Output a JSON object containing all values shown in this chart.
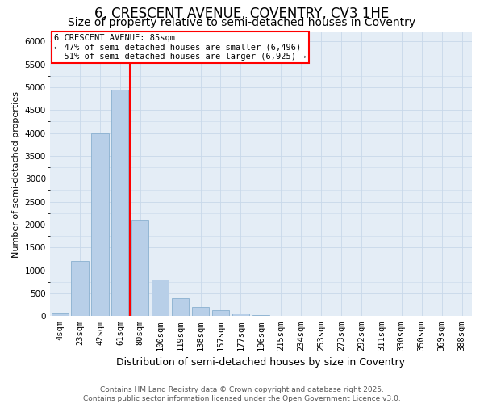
{
  "title": "6, CRESCENT AVENUE, COVENTRY, CV3 1HE",
  "subtitle": "Size of property relative to semi-detached houses in Coventry",
  "xlabel": "Distribution of semi-detached houses by size in Coventry",
  "ylabel": "Number of semi-detached properties",
  "categories": [
    "4sqm",
    "23sqm",
    "42sqm",
    "61sqm",
    "80sqm",
    "100sqm",
    "119sqm",
    "138sqm",
    "157sqm",
    "177sqm",
    "196sqm",
    "215sqm",
    "234sqm",
    "253sqm",
    "273sqm",
    "292sqm",
    "311sqm",
    "330sqm",
    "350sqm",
    "369sqm",
    "388sqm"
  ],
  "values": [
    70,
    1200,
    4000,
    4950,
    2100,
    800,
    400,
    200,
    130,
    55,
    20,
    8,
    3,
    1,
    0,
    0,
    0,
    0,
    0,
    0,
    0
  ],
  "bar_color": "#b8cfe8",
  "bar_edge_color": "#8ab0d0",
  "vline_index": 3.5,
  "property_line_label": "6 CRESCENT AVENUE: 85sqm",
  "smaller_pct": "47%",
  "smaller_count": "6,496",
  "larger_pct": "51%",
  "larger_count": "6,925",
  "vline_color": "red",
  "annotation_box_color": "red",
  "ylim": [
    0,
    6200
  ],
  "yticks": [
    0,
    500,
    1000,
    1500,
    2000,
    2500,
    3000,
    3500,
    4000,
    4500,
    5000,
    5500,
    6000
  ],
  "grid_color": "#c8d8ea",
  "background_color": "#e4edf6",
  "footer": "Contains HM Land Registry data © Crown copyright and database right 2025.\nContains public sector information licensed under the Open Government Licence v3.0.",
  "title_fontsize": 12,
  "subtitle_fontsize": 10,
  "xlabel_fontsize": 9,
  "ylabel_fontsize": 8,
  "tick_fontsize": 7.5,
  "footer_fontsize": 6.5
}
